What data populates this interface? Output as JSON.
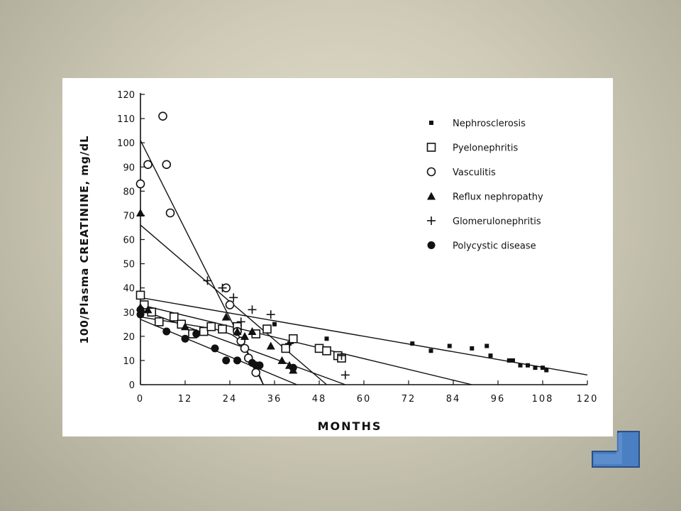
{
  "colors": {
    "background": "#d8d4c2",
    "figure": "#ffffff",
    "ink": "#111111",
    "nav_button": "#4a7fc4"
  },
  "nav": {
    "back_icon": "return-arrow-icon"
  },
  "chart_data": {
    "type": "scatter",
    "title": "",
    "xlabel": "MONTHS",
    "ylabel": "100/Plasma CREATININE, mg/dL",
    "xlim": [
      0,
      120
    ],
    "ylim": [
      0,
      120
    ],
    "xticks": [
      "0",
      "12",
      "24",
      "36",
      "48",
      "60",
      "72",
      "84",
      "96",
      "108",
      "120"
    ],
    "yticks": [
      "0",
      "10",
      "20",
      "30",
      "40",
      "50",
      "60",
      "70",
      "80",
      "90",
      "100",
      "110",
      "120"
    ],
    "grid": false,
    "legend_position": "top-right",
    "series": [
      {
        "name": "Nephrosclerosis",
        "marker": "small-filled-square",
        "points": [
          [
            40,
            17
          ],
          [
            50,
            19
          ],
          [
            36,
            25
          ],
          [
            73,
            17
          ],
          [
            78,
            14
          ],
          [
            83,
            16
          ],
          [
            89,
            15
          ],
          [
            93,
            16
          ],
          [
            94,
            12
          ],
          [
            99,
            10
          ],
          [
            100,
            10
          ],
          [
            102,
            8
          ],
          [
            104,
            8
          ],
          [
            106,
            7
          ],
          [
            108,
            7
          ],
          [
            109,
            6
          ]
        ]
      },
      {
        "name": "Pyelonephritis",
        "marker": "open-square",
        "points": [
          [
            0,
            37
          ],
          [
            1,
            33
          ],
          [
            3,
            30
          ],
          [
            5,
            26
          ],
          [
            9,
            28
          ],
          [
            11,
            25
          ],
          [
            14,
            21
          ],
          [
            17,
            22
          ],
          [
            19,
            24
          ],
          [
            22,
            23
          ],
          [
            26,
            24
          ],
          [
            31,
            21
          ],
          [
            34,
            23
          ],
          [
            39,
            15
          ],
          [
            41,
            19
          ],
          [
            48,
            15
          ],
          [
            50,
            14
          ],
          [
            53,
            12
          ],
          [
            54,
            11
          ]
        ]
      },
      {
        "name": "Vasculitis",
        "marker": "open-circle",
        "points": [
          [
            0,
            83
          ],
          [
            2,
            91
          ],
          [
            6,
            111
          ],
          [
            7,
            91
          ],
          [
            8,
            71
          ],
          [
            23,
            40
          ],
          [
            24,
            33
          ],
          [
            26,
            22
          ],
          [
            27,
            18
          ],
          [
            28,
            15
          ],
          [
            29,
            11
          ],
          [
            31,
            5
          ]
        ]
      },
      {
        "name": "Reflux nephropathy",
        "marker": "filled-triangle",
        "points": [
          [
            0,
            71
          ],
          [
            0,
            32
          ],
          [
            2,
            31
          ],
          [
            12,
            24
          ],
          [
            23,
            28
          ],
          [
            26,
            22
          ],
          [
            28,
            20
          ],
          [
            30,
            22
          ],
          [
            35,
            16
          ],
          [
            38,
            10
          ],
          [
            40,
            8
          ],
          [
            41,
            6
          ]
        ]
      },
      {
        "name": "Glomerulonephritis",
        "marker": "plus",
        "points": [
          [
            18,
            43
          ],
          [
            22,
            40
          ],
          [
            25,
            36
          ],
          [
            27,
            26
          ],
          [
            30,
            31
          ],
          [
            35,
            29
          ],
          [
            40,
            17
          ],
          [
            54,
            12
          ],
          [
            55,
            4
          ]
        ]
      },
      {
        "name": "Polycystic disease",
        "marker": "filled-circle",
        "points": [
          [
            0,
            31
          ],
          [
            0,
            29
          ],
          [
            7,
            22
          ],
          [
            12,
            19
          ],
          [
            15,
            21
          ],
          [
            20,
            15
          ],
          [
            23,
            10
          ],
          [
            26,
            10
          ],
          [
            30,
            9
          ],
          [
            31,
            8
          ],
          [
            32,
            8
          ],
          [
            41,
            7
          ]
        ]
      }
    ],
    "trend_lines": [
      {
        "from": [
          0,
          101
        ],
        "to": [
          33,
          0
        ]
      },
      {
        "from": [
          0,
          66
        ],
        "to": [
          50,
          0
        ]
      },
      {
        "from": [
          0,
          36
        ],
        "to": [
          120,
          4
        ]
      },
      {
        "from": [
          0,
          33
        ],
        "to": [
          89,
          0
        ]
      },
      {
        "from": [
          0,
          31
        ],
        "to": [
          55,
          0
        ]
      },
      {
        "from": [
          0,
          27
        ],
        "to": [
          42,
          0
        ]
      },
      {
        "from": [
          0,
          28
        ],
        "to": [
          16,
          24
        ],
        "via": [
          [
            20,
            23
          ],
          [
            24,
            21
          ]
        ],
        "curve_to": [
          33,
          0
        ]
      }
    ]
  }
}
